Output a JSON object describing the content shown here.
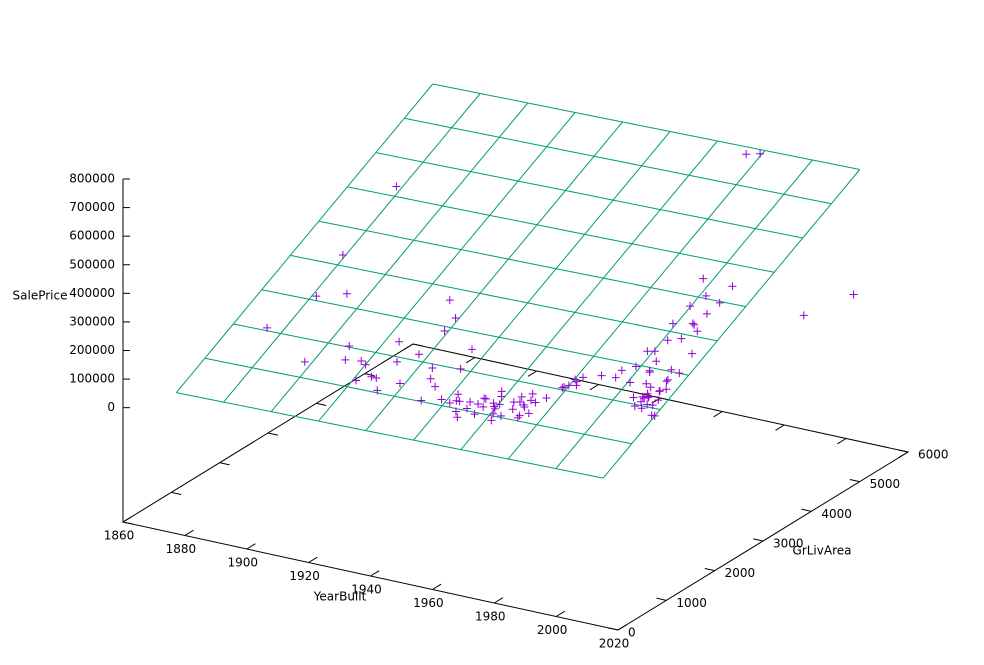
{
  "chart_data": {
    "type": "scatter3d",
    "x_label": "YearBuilt",
    "y_label": "GrLivArea",
    "z_label": "SalePrice",
    "xlim": [
      1860,
      2020
    ],
    "ylim": [
      0,
      6000
    ],
    "zlim": [
      0,
      800000
    ],
    "ticslevel": 0.5,
    "xticks": [
      1860,
      1880,
      1900,
      1920,
      1940,
      1960,
      1980,
      2000,
      2020
    ],
    "yticks": [
      0,
      1000,
      2000,
      3000,
      4000,
      5000,
      6000
    ],
    "zticks": [
      0,
      100000,
      200000,
      300000,
      400000,
      500000,
      600000,
      700000,
      800000
    ],
    "series": [
      {
        "color": "#9400d3",
        "marker": "+",
        "x": [
          1900,
          1910,
          1915,
          1920,
          1925,
          1930,
          1935,
          1940,
          1945,
          1950,
          1955,
          1958,
          1960,
          1962,
          1965,
          1968,
          1970,
          1972,
          1975,
          1977,
          1978,
          1980,
          1985,
          1990,
          1993,
          1995,
          1998,
          2000,
          2002,
          2003,
          2004,
          2005,
          2006,
          2006,
          2007,
          2007,
          2008,
          2008,
          2009,
          2005,
          1880,
          1885,
          1892,
          1898,
          1905,
          1912,
          1918,
          1922,
          1926,
          1928,
          1936,
          1939,
          1941,
          1948,
          1949,
          1952,
          1954,
          1956,
          1957,
          1959,
          1961,
          1963,
          1964,
          1966,
          1967,
          1969,
          1971,
          1973,
          1974,
          1976,
          1979,
          1988,
          1992,
          1994,
          1996,
          1997,
          1999,
          2001,
          2003,
          2004,
          2005,
          2006,
          2007,
          2008,
          2009,
          2010,
          2002,
          2000,
          1998,
          1996,
          1994,
          1996,
          1892,
          2008,
          2007,
          1915,
          1920,
          1950,
          1965,
          1970,
          1954,
          1958,
          1962,
          1963,
          1968,
          1971,
          1976,
          1977,
          2003,
          2004,
          2005,
          2006,
          2007,
          2006,
          2005,
          2004,
          1999,
          1930,
          1940,
          1925
        ],
        "y": [
          1200,
          1400,
          1500,
          1300,
          1100,
          1250,
          1600,
          1050,
          1150,
          1000,
          1100,
          1200,
          1050,
          1300,
          900,
          1150,
          1250,
          1000,
          1400,
          1600,
          1800,
          1700,
          1900,
          2000,
          2100,
          1850,
          2200,
          1600,
          1500,
          1700,
          1650,
          1450,
          1750,
          1900,
          2100,
          1550,
          1600,
          2300,
          1400,
          2600,
          1700,
          2400,
          3608,
          2200,
          1800,
          1600,
          2000,
          1700,
          1900,
          2300,
          1500,
          1400,
          1800,
          1300,
          1200,
          1000,
          1100,
          1200,
          1300,
          1500,
          1200,
          1100,
          1000,
          1300,
          1400,
          1500,
          1200,
          1300,
          1100,
          1700,
          1900,
          2000,
          2400,
          2800,
          2300,
          2500,
          2000,
          1800,
          1600,
          1500,
          1600,
          1500,
          1700,
          1800,
          1700,
          1400,
          2700,
          3100,
          2900,
          3300,
          4316,
          4476,
          2500,
          5642,
          4676,
          1300,
          1400,
          1200,
          1100,
          1400,
          900,
          1000,
          1150,
          1200,
          1300,
          1100,
          1800,
          1900,
          2400,
          2600,
          2800,
          3000,
          3200,
          2000,
          1500,
          1700,
          2000,
          2400,
          2100,
          2600
        ],
        "z": [
          130000,
          140000,
          125000,
          115000,
          100000,
          120000,
          150000,
          105000,
          110000,
          125000,
          130000,
          140000,
          130000,
          145000,
          110000,
          130000,
          140000,
          125000,
          160000,
          180000,
          190000,
          185000,
          210000,
          230000,
          240000,
          215000,
          260000,
          200000,
          185000,
          210000,
          205000,
          190000,
          220000,
          240000,
          250000,
          195000,
          210000,
          300000,
          180000,
          340000,
          150000,
          200000,
          475000,
          260000,
          135000,
          120000,
          160000,
          130000,
          145000,
          190000,
          125000,
          115000,
          140000,
          120000,
          110000,
          100000,
          105000,
          115000,
          125000,
          135000,
          130000,
          125000,
          120000,
          135000,
          145000,
          150000,
          140000,
          150000,
          135000,
          170000,
          190000,
          200000,
          260000,
          320000,
          280000,
          300000,
          250000,
          230000,
          210000,
          205000,
          215000,
          200000,
          230000,
          260000,
          240000,
          180000,
          350000,
          400000,
          380000,
          430000,
          755000,
          745000,
          350000,
          160000,
          184750,
          90000,
          100000,
          110000,
          105000,
          140000,
          95000,
          105000,
          125000,
          130000,
          140000,
          120000,
          165000,
          170000,
          330000,
          360000,
          380000,
          400000,
          440000,
          270000,
          220000,
          235000,
          245000,
          230000,
          175000,
          260000
        ]
      }
    ],
    "surface": {
      "color": "#009e73",
      "x": [
        1872,
        1887.3,
        1902.7,
        1918,
        1933.3,
        1948.7,
        1964,
        1979.3,
        1994.7,
        2010
      ],
      "y": [
        334,
        923.8,
        1513.6,
        2103.3,
        2693.1,
        3282.9,
        3872.7,
        4462.4,
        5052.2,
        5642
      ],
      "z": [
        [
          46400,
          105140,
          163880,
          222620,
          281360,
          340100,
          398840,
          457580,
          516320,
          575080
        ],
        [
          49390,
          108130,
          166870,
          225610,
          284350,
          343090,
          401830,
          460570,
          519310,
          578070
        ],
        [
          52380,
          111120,
          169860,
          228600,
          287340,
          346080,
          404820,
          463560,
          522300,
          581060
        ],
        [
          55370,
          114110,
          172850,
          231590,
          290330,
          349070,
          407810,
          466550,
          525290,
          584050
        ],
        [
          58360,
          117100,
          175840,
          234580,
          293320,
          352060,
          410800,
          469540,
          528280,
          587040
        ],
        [
          61350,
          120090,
          178830,
          237570,
          296310,
          355050,
          413790,
          472530,
          531270,
          590030
        ],
        [
          64340,
          123080,
          181820,
          240560,
          299300,
          358040,
          416780,
          475520,
          534260,
          593020
        ],
        [
          67330,
          126070,
          184810,
          243550,
          302290,
          361030,
          419770,
          478510,
          537250,
          596010
        ],
        [
          70320,
          129060,
          187800,
          246540,
          305280,
          364020,
          422760,
          481500,
          540240,
          599000
        ],
        [
          73310,
          132050,
          190790,
          249530,
          308270,
          367010,
          425750,
          484490,
          543230,
          601990
        ]
      ]
    }
  }
}
